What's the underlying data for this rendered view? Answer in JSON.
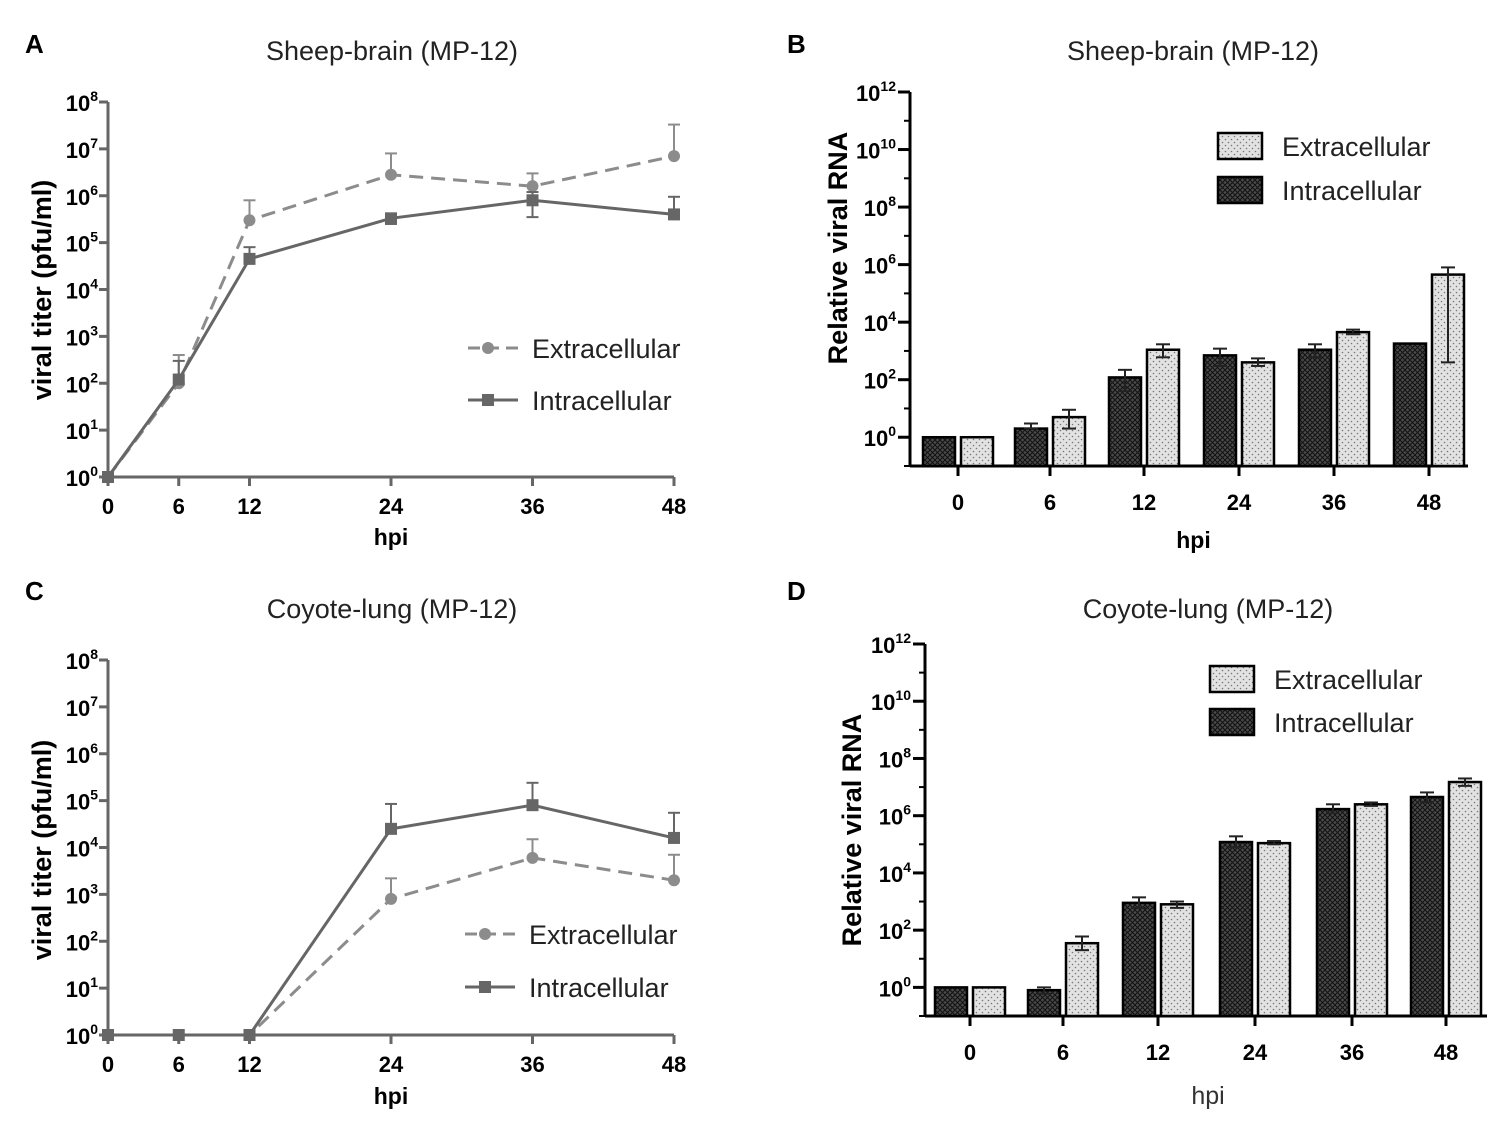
{
  "chart_data": [
    {
      "id": "A",
      "panel_label": "A",
      "type": "line",
      "title": "Sheep-brain (MP-12)",
      "xlabel": "hpi",
      "ylabel": "viral titer (pfu/ml)",
      "yscale": "log",
      "ylim": [
        1,
        100000000
      ],
      "x": [
        0,
        6,
        12,
        24,
        36,
        48
      ],
      "xtick_labels": [
        "0",
        "6",
        "12",
        "24",
        "36",
        "48"
      ],
      "ytick_base": "10",
      "ytick_exponents": [
        "0",
        "1",
        "2",
        "3",
        "4",
        "5",
        "6",
        "7",
        "8"
      ],
      "legend_position": "center-right",
      "series": [
        {
          "name": "Extracellular",
          "style": "dashed",
          "marker": "circle",
          "color": "#8c8c8c",
          "values": [
            1,
            100,
            300000,
            2800000,
            1600000,
            7000000
          ],
          "error_upper": [
            1,
            400,
            800000,
            8000000,
            3000000,
            33000000
          ]
        },
        {
          "name": "Intracellular",
          "style": "solid",
          "marker": "square",
          "color": "#666666",
          "values": [
            1,
            120,
            45000,
            330000,
            800000,
            400000
          ],
          "error_upper": [
            1,
            300,
            80000,
            400000,
            1200000,
            950000
          ],
          "error_lower": [
            1,
            120,
            45000,
            250000,
            350000,
            400000
          ]
        }
      ]
    },
    {
      "id": "B",
      "panel_label": "B",
      "type": "bar",
      "title": "Sheep-brain (MP-12)",
      "xlabel": "hpi",
      "ylabel": "Relative viral RNA",
      "yscale": "log",
      "ylim": [
        0.1,
        1000000000000
      ],
      "categories": [
        "0",
        "6",
        "12",
        "24",
        "36",
        "48"
      ],
      "ytick_base": "10",
      "ytick_exponents": [
        "0",
        "2",
        "4",
        "6",
        "8",
        "10",
        "12"
      ],
      "legend_position": "top-right",
      "series": [
        {
          "name": "Intracellular",
          "pattern": "crosshatch",
          "color": "#3a3a3a",
          "values": [
            1,
            2,
            120,
            700,
            1100,
            1800
          ],
          "error_upper": [
            1,
            3,
            220,
            1200,
            1700,
            1800
          ],
          "error_lower": [
            1,
            2,
            40,
            300,
            600,
            1800
          ]
        },
        {
          "name": "Extracellular",
          "pattern": "dotted",
          "color": "#dcdcdc",
          "values": [
            1,
            5,
            1100,
            400,
            4500,
            450000
          ],
          "error_upper": [
            1,
            9,
            1700,
            550,
            5500,
            800000
          ],
          "error_lower": [
            1,
            2,
            600,
            300,
            3800,
            400
          ]
        }
      ]
    },
    {
      "id": "C",
      "panel_label": "C",
      "type": "line",
      "title": "Coyote-lung (MP-12)",
      "xlabel": "hpi",
      "ylabel": "viral titer (pfu/ml)",
      "yscale": "log",
      "ylim": [
        1,
        100000000
      ],
      "x": [
        0,
        6,
        12,
        24,
        36,
        48
      ],
      "xtick_labels": [
        "0",
        "6",
        "12",
        "24",
        "36",
        "48"
      ],
      "ytick_base": "10",
      "ytick_exponents": [
        "0",
        "1",
        "2",
        "3",
        "4",
        "5",
        "6",
        "7",
        "8"
      ],
      "legend_position": "bottom-right",
      "series": [
        {
          "name": "Extracellular",
          "style": "dashed",
          "marker": "circle",
          "color": "#8c8c8c",
          "values": [
            1,
            1,
            1,
            800,
            6000,
            2000
          ],
          "error_upper": [
            1,
            1,
            1,
            2200,
            15000,
            7000
          ]
        },
        {
          "name": "Intracellular",
          "style": "solid",
          "marker": "square",
          "color": "#666666",
          "values": [
            1,
            1,
            1,
            25000,
            80000,
            16000
          ],
          "error_upper": [
            1,
            1,
            1,
            85000,
            240000,
            55000
          ]
        }
      ]
    },
    {
      "id": "D",
      "panel_label": "D",
      "type": "bar",
      "title": "Coyote-lung (MP-12)",
      "xlabel": "hpi",
      "ylabel": "Relative viral RNA",
      "yscale": "log",
      "ylim": [
        0.1,
        1000000000000
      ],
      "categories": [
        "0",
        "6",
        "12",
        "24",
        "36",
        "48"
      ],
      "ytick_base": "10",
      "ytick_exponents": [
        "0",
        "2",
        "4",
        "6",
        "8",
        "10",
        "12"
      ],
      "legend_position": "top-right",
      "series": [
        {
          "name": "Intracellular",
          "pattern": "crosshatch",
          "color": "#3a3a3a",
          "values": [
            1,
            0.8,
            900,
            120000,
            1700000,
            4500000
          ],
          "error_upper": [
            1,
            1,
            1400,
            190000,
            2500000,
            6500000
          ],
          "error_lower": [
            1,
            0.6,
            600,
            80000,
            1200000,
            3000000
          ]
        },
        {
          "name": "Extracellular",
          "pattern": "dotted",
          "color": "#dcdcdc",
          "values": [
            1,
            35,
            800,
            110000,
            2500000,
            15000000
          ],
          "error_upper": [
            1,
            60,
            1000,
            130000,
            2900000,
            20000000
          ],
          "error_lower": [
            1,
            20,
            600,
            100000,
            2200000,
            11000000
          ]
        }
      ]
    }
  ]
}
